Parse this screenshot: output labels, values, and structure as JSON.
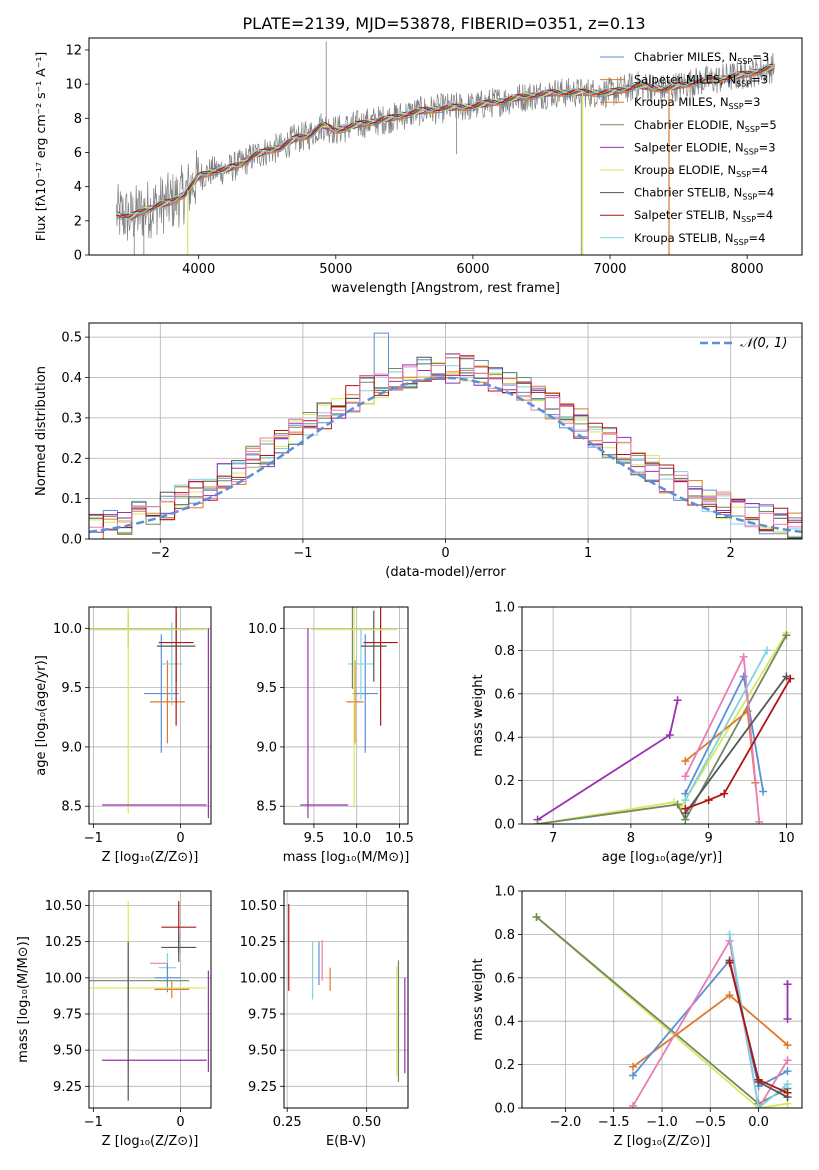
{
  "figure_title": "PLATE=2139, MJD=53878, FIBERID=0351, z=0.13",
  "colors": {
    "data_gray": "#808080",
    "chabrier_miles": "#5b8fd6",
    "salpeter_miles": "#e0782b",
    "kroupa_miles": "#e0782b",
    "chabrier_elodie": "#6f8a64",
    "salpeter_elodie": "#9b30b0",
    "kroupa_elodie": "#d9e85a",
    "chabrier_stelib": "#555555",
    "salpeter_stelib": "#b01515",
    "kroupa_stelib": "#7fd3e0",
    "normal": "#5b8fd6",
    "pink": "#e87db5"
  },
  "chart_data": [
    {
      "id": "spectrum",
      "type": "line",
      "title": "PLATE=2139, MJD=53878, FIBERID=0351, z=0.13",
      "xlabel": "wavelength [Angstrom, rest frame]",
      "ylabel": "Flux [fλ10⁻¹⁷ erg cm⁻² s⁻¹ A⁻¹]",
      "xlim": [
        3200,
        8400
      ],
      "ylim": [
        0,
        12.7
      ],
      "xticks": [
        "4000",
        "5000",
        "6000",
        "7000",
        "8000"
      ],
      "yticks": [
        "0",
        "2",
        "4",
        "6",
        "8",
        "10",
        "12"
      ],
      "legend_position": "top-right",
      "legend": [
        "Chabrier MILES, N_SSP=3",
        "Salpeter MILES, N_SSP=3",
        "Kroupa MILES, N_SSP=3",
        "Chabrier ELODIE, N_SSP=5",
        "Salpeter ELODIE, N_SSP=3",
        "Kroupa ELODIE, N_SSP=4",
        "Chabrier STELIB, N_SSP=4",
        "Salpeter STELIB, N_SSP=4",
        "Kroupa STELIB, N_SSP=4"
      ],
      "continuum": {
        "x": [
          3400,
          3500,
          3600,
          3700,
          3800,
          3900,
          4000,
          4100,
          4200,
          4300,
          4400,
          4500,
          4600,
          4700,
          4800,
          4900,
          5000,
          5200,
          5400,
          5600,
          5800,
          6000,
          6200,
          6400,
          6600,
          6800,
          7000,
          7200,
          7400,
          7600,
          7800,
          8000,
          8200
        ],
        "y": [
          2.4,
          2.2,
          2.6,
          2.9,
          3.1,
          3.6,
          4.6,
          4.9,
          5.0,
          5.3,
          5.8,
          6.1,
          6.3,
          6.8,
          7.0,
          7.6,
          7.3,
          7.7,
          8.0,
          8.4,
          8.6,
          8.7,
          9.0,
          9.3,
          9.5,
          9.5,
          9.5,
          9.9,
          9.7,
          10.1,
          10.3,
          10.6,
          11.0
        ]
      },
      "data_range": [
        3400,
        8200
      ],
      "cutoffs": [
        {
          "series": "Kroupa ELODIE",
          "x": 3920
        },
        {
          "series": "Kroupa ELODIE",
          "x": 6800
        },
        {
          "series": "Salpeter STELIB",
          "x": 7430
        }
      ]
    },
    {
      "id": "residuals",
      "type": "histogram",
      "xlabel": "(data-model)/error",
      "ylabel": "Normed distribution",
      "xlim": [
        -2.5,
        2.5
      ],
      "ylim": [
        0,
        0.535
      ],
      "xticks": [
        "−2",
        "−1",
        "0",
        "1",
        "2"
      ],
      "yticks": [
        "0.0",
        "0.1",
        "0.2",
        "0.3",
        "0.4",
        "0.5"
      ],
      "legend": [
        "𝒩(0, 1)"
      ],
      "legend_position": "top-right",
      "bin_width": 0.1,
      "reference": "N(0,1)",
      "peak_values": [
        0.51,
        0.46,
        0.46
      ]
    },
    {
      "id": "Z_vs_age",
      "type": "errorbar",
      "xlabel": "Z [log₁₀(Z/Z⊙)]",
      "ylabel": "age  [log₁₀(age/yr)]",
      "xlim": [
        -1.05,
        0.35
      ],
      "ylim": [
        8.35,
        10.18
      ],
      "xticks": [
        "−1",
        "0"
      ],
      "yticks": [
        "8.5",
        "9.0",
        "9.5",
        "10.0"
      ],
      "points": [
        {
          "c": "chabrier_miles",
          "x": -0.22,
          "y": 9.45,
          "xe": 0.2,
          "ye": 0.5
        },
        {
          "c": "salpeter_miles",
          "x": -0.15,
          "y": 9.38,
          "xe": 0.2,
          "ye": 0.35
        },
        {
          "c": "kroupa_stelib",
          "x": -0.1,
          "y": 9.7,
          "xe": 0.12,
          "ye": 0.35
        },
        {
          "c": "chabrier_stelib",
          "x": -0.05,
          "y": 9.85,
          "xe": 0.22,
          "ye": 0.3
        },
        {
          "c": "salpeter_stelib",
          "x": -0.05,
          "y": 9.88,
          "xe": 0.2,
          "ye": 0.7
        },
        {
          "c": "chabrier_elodie",
          "x": -0.6,
          "y": 9.99,
          "xe": 0.7,
          "ye": 0.14
        },
        {
          "c": "kroupa_elodie",
          "x": -0.6,
          "y": 9.99,
          "xe": 0.9,
          "ye": 1.55
        },
        {
          "c": "salpeter_elodie",
          "x": -0.3,
          "y": 8.51,
          "xe": 0.6,
          "ye": 0.0
        },
        {
          "c": "salpeter_elodie",
          "x": 0.32,
          "y": 9.2,
          "xe": 0.0,
          "ye": 0.8
        }
      ]
    },
    {
      "id": "mass_vs_age",
      "type": "errorbar",
      "xlabel": "mass [log₁₀(M/M⊙)]",
      "ylabel": "",
      "xlim": [
        9.15,
        10.6
      ],
      "ylim": [
        8.35,
        10.18
      ],
      "xticks": [
        "9.5",
        "10.0",
        "10.5"
      ],
      "yticks": [
        "8.5",
        "9.0",
        "9.5",
        "10.0"
      ],
      "points": [
        {
          "c": "chabrier_miles",
          "x": 10.1,
          "y": 9.45,
          "xe": 0.15,
          "ye": 0.5
        },
        {
          "c": "salpeter_miles",
          "x": 9.98,
          "y": 9.38,
          "xe": 0.1,
          "ye": 0.35
        },
        {
          "c": "kroupa_stelib",
          "x": 10.05,
          "y": 9.7,
          "xe": 0.15,
          "ye": 0.3
        },
        {
          "c": "chabrier_stelib",
          "x": 10.2,
          "y": 9.85,
          "xe": 0.15,
          "ye": 0.3
        },
        {
          "c": "salpeter_stelib",
          "x": 10.28,
          "y": 9.88,
          "xe": 0.2,
          "ye": 0.7
        },
        {
          "c": "chabrier_elodie",
          "x": 9.95,
          "y": 9.99,
          "xe": 0.0,
          "ye": 0.5
        },
        {
          "c": "kroupa_elodie",
          "x": 9.97,
          "y": 9.99,
          "xe": 0.5,
          "ye": 1.5
        },
        {
          "c": "salpeter_elodie",
          "x": 9.62,
          "y": 8.51,
          "xe": 0.28,
          "ye": 0.0
        },
        {
          "c": "salpeter_elodie",
          "x": 9.43,
          "y": 9.2,
          "xe": 0.0,
          "ye": 0.8
        }
      ]
    },
    {
      "id": "weight_vs_age",
      "type": "line",
      "xlabel": "age  [log₁₀(age/yr)]",
      "ylabel": "mass weight",
      "xlim": [
        6.6,
        10.2
      ],
      "ylim": [
        0,
        1.0
      ],
      "xticks": [
        "7",
        "8",
        "9",
        "10"
      ],
      "yticks": [
        "0.0",
        "0.2",
        "0.4",
        "0.6",
        "0.8",
        "1.0"
      ],
      "series": [
        {
          "c": "salpeter_elodie",
          "x": [
            6.8,
            8.5,
            8.6
          ],
          "y": [
            0.02,
            0.41,
            0.57
          ]
        },
        {
          "c": "kroupa_elodie",
          "x": [
            6.8,
            8.55,
            8.65,
            10.0
          ],
          "y": [
            0.0,
            0.1,
            0.08,
            0.88
          ]
        },
        {
          "c": "chabrier_elodie",
          "x": [
            6.8,
            8.6,
            8.7,
            10.0
          ],
          "y": [
            0.0,
            0.09,
            0.02,
            0.87
          ]
        },
        {
          "c": "salpeter_miles",
          "x": [
            8.7,
            9.5,
            9.6
          ],
          "y": [
            0.29,
            0.52,
            0.19
          ]
        },
        {
          "c": "chabrier_miles",
          "x": [
            8.7,
            9.45,
            9.7
          ],
          "y": [
            0.14,
            0.68,
            0.15
          ]
        },
        {
          "c": "pink",
          "x": [
            8.7,
            9.45,
            9.65
          ],
          "y": [
            0.22,
            0.77,
            0.01
          ]
        },
        {
          "c": "kroupa_stelib",
          "x": [
            8.7,
            9.75
          ],
          "y": [
            0.11,
            0.8
          ]
        },
        {
          "c": "chabrier_stelib",
          "x": [
            8.7,
            10.0
          ],
          "y": [
            0.05,
            0.68
          ]
        },
        {
          "c": "salpeter_stelib",
          "x": [
            8.7,
            9.0,
            9.2,
            10.05
          ],
          "y": [
            0.07,
            0.11,
            0.14,
            0.67
          ]
        }
      ]
    },
    {
      "id": "Z_vs_mass",
      "type": "errorbar",
      "xlabel": "Z [log₁₀(Z/Z⊙)]",
      "ylabel": "mass [log₁₀(M/M⊙)]",
      "xlim": [
        -1.05,
        0.35
      ],
      "ylim": [
        9.1,
        10.6
      ],
      "xticks": [
        "−1",
        "0"
      ],
      "yticks": [
        "9.25",
        "9.50",
        "9.75",
        "10.00",
        "10.25",
        "10.50"
      ],
      "points": [
        {
          "c": "salpeter_stelib",
          "x": -0.02,
          "y": 10.35,
          "xe": 0.2,
          "ye": 0.18
        },
        {
          "c": "chabrier_stelib",
          "x": -0.02,
          "y": 10.21,
          "xe": 0.2,
          "ye": 0.1
        },
        {
          "c": "pink",
          "x": -0.25,
          "y": 10.1,
          "xe": 0.1,
          "ye": 0.0
        },
        {
          "c": "kroupa_stelib",
          "x": -0.15,
          "y": 10.07,
          "xe": 0.1,
          "ye": 0.1
        },
        {
          "c": "chabrier_miles",
          "x": -0.15,
          "y": 10.0,
          "xe": 0.15,
          "ye": 0.1
        },
        {
          "c": "salpeter_miles",
          "x": -0.1,
          "y": 9.92,
          "xe": 0.2,
          "ye": 0.06
        },
        {
          "c": "chabrier_elodie",
          "x": -0.6,
          "y": 9.98,
          "xe": 0.7,
          "ye": 0.15
        },
        {
          "c": "kroupa_elodie",
          "x": -0.6,
          "y": 9.93,
          "xe": 0.9,
          "ye": 0.6
        },
        {
          "c": "salpeter_elodie",
          "x": -0.3,
          "y": 9.43,
          "xe": 0.6,
          "ye": 0.0
        },
        {
          "c": "salpeter_elodie",
          "x": 0.32,
          "y": 9.7,
          "xe": 0.0,
          "ye": 0.35
        },
        {
          "c": "chabrier_stelib",
          "x": -0.6,
          "y": 9.7,
          "xe": 0.0,
          "ye": 0.55
        }
      ]
    },
    {
      "id": "ebv_vs_mass",
      "type": "errorbar",
      "xlabel": "E(B-V)",
      "ylabel": "",
      "xlim": [
        0.24,
        0.63
      ],
      "ylim": [
        9.1,
        10.6
      ],
      "xticks": [
        "0.25",
        "0.50"
      ],
      "yticks": [
        "9.25",
        "9.50",
        "9.75",
        "10.00",
        "10.25",
        "10.50"
      ],
      "points": [
        {
          "c": "salpeter_stelib",
          "x": 0.255,
          "y": 10.21,
          "xe": 0.0,
          "ye": 0.3
        },
        {
          "c": "kroupa_stelib",
          "x": 0.33,
          "y": 10.05,
          "xe": 0.0,
          "ye": 0.2
        },
        {
          "c": "chabrier_miles",
          "x": 0.35,
          "y": 10.1,
          "xe": 0.0,
          "ye": 0.15
        },
        {
          "c": "pink",
          "x": 0.36,
          "y": 10.12,
          "xe": 0.0,
          "ye": 0.14
        },
        {
          "c": "salpeter_miles",
          "x": 0.385,
          "y": 9.99,
          "xe": 0.0,
          "ye": 0.08
        },
        {
          "c": "kroupa_elodie",
          "x": 0.595,
          "y": 9.7,
          "xe": 0.0,
          "ye": 0.38
        },
        {
          "c": "chabrier_elodie",
          "x": 0.6,
          "y": 9.7,
          "xe": 0.0,
          "ye": 0.42
        },
        {
          "c": "salpeter_elodie",
          "x": 0.62,
          "y": 9.67,
          "xe": 0.0,
          "ye": 0.33
        }
      ]
    },
    {
      "id": "weight_vs_Z",
      "type": "line",
      "xlabel": "Z [log₁₀(Z/Z⊙)]",
      "ylabel": "mass weight",
      "xlim": [
        -2.45,
        0.45
      ],
      "ylim": [
        0,
        1.0
      ],
      "xticks": [
        "−2.0",
        "−1.5",
        "−1.0",
        "−0.5",
        "0.0"
      ],
      "yticks": [
        "0.0",
        "0.2",
        "0.4",
        "0.6",
        "0.8",
        "1.0"
      ],
      "series": [
        {
          "c": "salpeter_elodie",
          "x": [
            0.3,
            0.3,
            0.3
          ],
          "y": [
            0.57,
            0.41,
            0.57
          ]
        },
        {
          "c": "kroupa_elodie",
          "x": [
            -2.3,
            0.0,
            0.3
          ],
          "y": [
            0.88,
            0.0,
            0.02
          ]
        },
        {
          "c": "chabrier_elodie",
          "x": [
            -2.3,
            0.0,
            0.3
          ],
          "y": [
            0.88,
            0.02,
            0.09
          ]
        },
        {
          "c": "salpeter_miles",
          "x": [
            -1.3,
            -0.3,
            0.3
          ],
          "y": [
            0.19,
            0.52,
            0.29
          ]
        },
        {
          "c": "chabrier_miles",
          "x": [
            -1.3,
            -0.3,
            0.0,
            0.3
          ],
          "y": [
            0.15,
            0.68,
            0.1,
            0.17
          ]
        },
        {
          "c": "pink",
          "x": [
            -1.3,
            -0.3,
            0.0,
            0.3
          ],
          "y": [
            0.01,
            0.77,
            0.0,
            0.22
          ]
        },
        {
          "c": "kroupa_stelib",
          "x": [
            -0.3,
            0.0,
            0.3
          ],
          "y": [
            0.8,
            0.0,
            0.11
          ]
        },
        {
          "c": "chabrier_stelib",
          "x": [
            -0.3,
            0.0,
            0.3
          ],
          "y": [
            0.68,
            0.12,
            0.05
          ]
        },
        {
          "c": "salpeter_stelib",
          "x": [
            -0.3,
            0.0,
            0.3
          ],
          "y": [
            0.67,
            0.13,
            0.07
          ]
        }
      ]
    }
  ]
}
